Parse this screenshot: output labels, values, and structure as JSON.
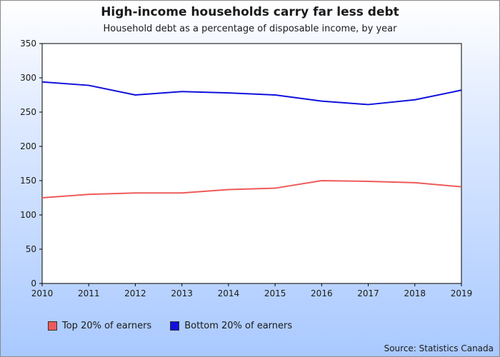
{
  "chart_data": {
    "type": "line",
    "title": "High-income households carry far less debt",
    "subtitle": "Household debt as a percentage of disposable income, by year",
    "x": [
      2010,
      2011,
      2012,
      2013,
      2014,
      2015,
      2016,
      2017,
      2018,
      2019
    ],
    "series": [
      {
        "name": "Top 20% of earners",
        "color": "#ee5a5a",
        "values": [
          125,
          130,
          132,
          132,
          137,
          139,
          150,
          149,
          147,
          141
        ]
      },
      {
        "name": "Bottom 20% of earners",
        "color": "#1010dd",
        "values": [
          294,
          289,
          275,
          280,
          278,
          275,
          266,
          261,
          268,
          282
        ]
      }
    ],
    "ylim": [
      0,
      350
    ],
    "yticks": [
      0,
      50,
      100,
      150,
      200,
      250,
      300,
      350
    ],
    "xlabel": "",
    "ylabel": "",
    "grid": false,
    "legend": "bottom-left",
    "source": "Source: Statistics Canada",
    "colors": {
      "plot_background": "#ffffff",
      "axis": "#000000"
    }
  }
}
